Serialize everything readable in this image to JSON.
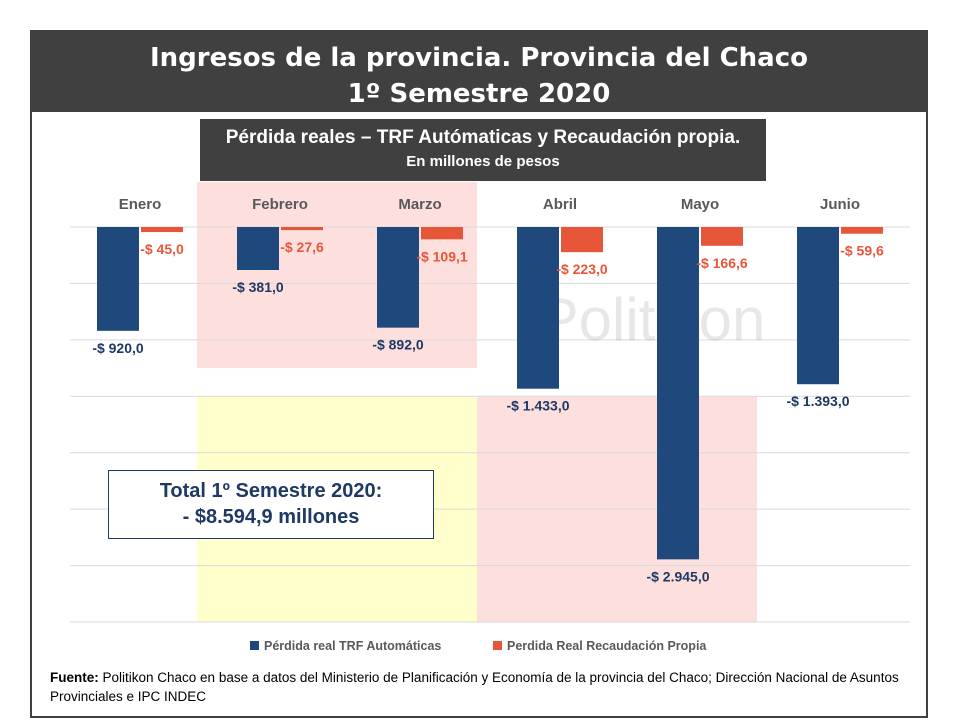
{
  "header": {
    "title_line1": "Ingresos de la provincia. Provincia del Chaco",
    "title_line2": "1º Semestre 2020"
  },
  "subtitle": {
    "line1": "Pérdida reales – TRF Autómaticas y Recaudación propia.",
    "line2": "En millones de pesos"
  },
  "total_box": {
    "line1": "Total 1º Semestre 2020:",
    "line2": "- $8.594,9 millones"
  },
  "watermark": "Politikon",
  "footer": {
    "label": "Fuente:",
    "text": " Politikon Chaco en base a datos del Ministerio de Planificación y Economía de la provincia del Chaco; Dirección Nacional de Asuntos Provinciales e IPC INDEC"
  },
  "colors": {
    "trf": "#1f497d",
    "recaudacion": "#e8563a",
    "highlight_red": "#fde0de",
    "highlight_yellow": "#ffffcc",
    "label_trf": "#1f3864",
    "label_rec": "#e8563a"
  },
  "chart_data": {
    "type": "bar",
    "categories": [
      "Enero",
      "Febrero",
      "Marzo",
      "Abril",
      "Mayo",
      "Junio"
    ],
    "series": [
      {
        "name": "Pérdida real TRF Automáticas",
        "values": [
          -920.0,
          -381.0,
          -892.0,
          -1433.0,
          -2945.0,
          -1393.0
        ],
        "labels": [
          "-$ 920,0",
          "-$ 381,0",
          "-$ 892,0",
          "-$ 1.433,0",
          "-$ 2.945,0",
          "-$ 1.393,0"
        ]
      },
      {
        "name": "Perdida Real Recaudación Propia",
        "values": [
          -45.0,
          -27.6,
          -109.1,
          -223.0,
          -166.6,
          -59.6
        ],
        "labels": [
          "-$ 45,0",
          "-$ 27,6",
          "-$ 109,1",
          "-$ 223,0",
          "-$ 166,6",
          "-$ 59,6"
        ]
      }
    ],
    "ylim": [
      -3500,
      0
    ],
    "grid": true,
    "legend_position": "bottom",
    "highlight_bands": [
      {
        "categories": [
          "Febrero",
          "Marzo"
        ],
        "value_range": [
          0,
          -1250
        ],
        "color": "red"
      },
      {
        "categories": [
          "Febrero",
          "Marzo"
        ],
        "value_range": [
          -1500,
          -3500
        ],
        "color": "yellow"
      },
      {
        "categories": [
          "Abril",
          "Mayo"
        ],
        "value_range": [
          -1500,
          -3500
        ],
        "color": "red"
      }
    ]
  }
}
